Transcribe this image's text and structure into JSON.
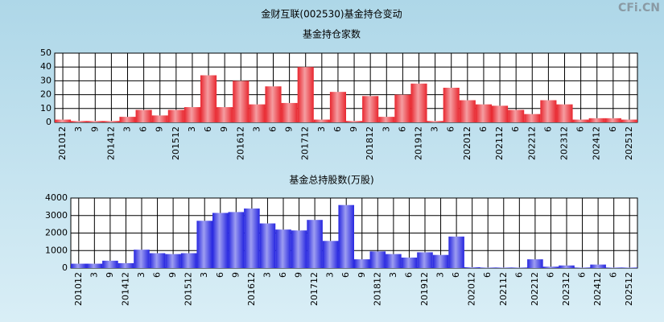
{
  "title": "金财互联(002530)基金持仓变动",
  "watermark": "CFi.CN",
  "chart_data": [
    {
      "type": "bar",
      "title": "基金持仓家数",
      "color": "#e8262e",
      "categories": [
        "201012",
        "3",
        "9",
        "201412",
        "3",
        "6",
        "9",
        "201512",
        "3",
        "6",
        "9",
        "201612",
        "3",
        "6",
        "9",
        "201712",
        "3",
        "6",
        "9",
        "201812",
        "3",
        "6",
        "201912",
        "3",
        "6",
        "202012",
        "6",
        "202112",
        "6",
        "202212",
        "6",
        "202312",
        "6",
        "202412",
        "6",
        "202512"
      ],
      "values": [
        2,
        1,
        1,
        1,
        4,
        9,
        5,
        9,
        11,
        34,
        11,
        30,
        13,
        26,
        14,
        40,
        2,
        22,
        1,
        19,
        4,
        20,
        28,
        1,
        25,
        16,
        13,
        12,
        9,
        6,
        16,
        13,
        2,
        3,
        3,
        2
      ],
      "ylim": [
        0,
        50
      ],
      "yticks": [
        0,
        10,
        20,
        30,
        40,
        50
      ],
      "grid": true
    },
    {
      "type": "bar",
      "title": "基金总持股数(万股)",
      "color": "#2626e0",
      "categories": [
        "201012",
        "3",
        "9",
        "201412",
        "3",
        "6",
        "9",
        "201512",
        "3",
        "6",
        "9",
        "201612",
        "3",
        "6",
        "9",
        "201712",
        "3",
        "6",
        "9",
        "201812",
        "3",
        "6",
        "201912",
        "3",
        "6",
        "202012",
        "6",
        "202112",
        "6",
        "202212",
        "6",
        "202312",
        "6",
        "202412",
        "6",
        "202512"
      ],
      "values": [
        250,
        250,
        420,
        280,
        1050,
        850,
        800,
        850,
        2700,
        3150,
        3200,
        3400,
        2550,
        2200,
        2150,
        2750,
        1550,
        3600,
        500,
        950,
        800,
        600,
        900,
        750,
        1800,
        50,
        30,
        30,
        30,
        500,
        80,
        150,
        30,
        200,
        30,
        30
      ],
      "ylim": [
        0,
        4000
      ],
      "yticks": [
        0,
        1000,
        2000,
        3000,
        4000
      ],
      "grid": true
    }
  ]
}
